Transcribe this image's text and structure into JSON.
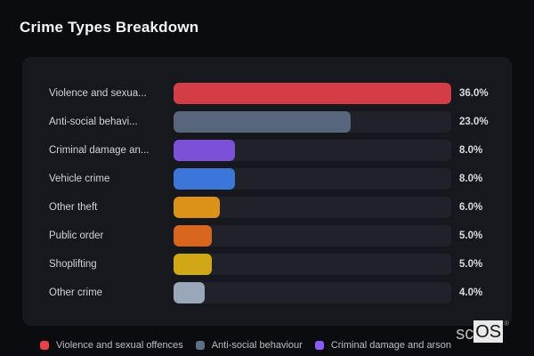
{
  "page": {
    "title": "Crime Types Breakdown"
  },
  "chart_data": {
    "type": "bar",
    "orientation": "horizontal",
    "title": "Crime Types Breakdown",
    "categories": [
      "Violence and sexual offences",
      "Anti-social behaviour",
      "Criminal damage and arson",
      "Vehicle crime",
      "Other theft",
      "Public order",
      "Shoplifting",
      "Other crime"
    ],
    "display_labels": [
      "Violence and sexua...",
      "Anti-social behavi...",
      "Criminal damage an...",
      "Vehicle crime",
      "Other theft",
      "Public order",
      "Shoplifting",
      "Other crime"
    ],
    "values": [
      36.0,
      23.0,
      8.0,
      8.0,
      6.0,
      5.0,
      5.0,
      4.0
    ],
    "value_labels": [
      "36.0%",
      "23.0%",
      "8.0%",
      "8.0%",
      "6.0%",
      "5.0%",
      "5.0%",
      "4.0%"
    ],
    "colors": [
      "#d43d47",
      "#57667a",
      "#7d50d8",
      "#3b76d8",
      "#dc9119",
      "#d9661e",
      "#d0a716",
      "#9aa7ba"
    ],
    "max_value": 36,
    "value_suffix": "%",
    "track_color": "#212229",
    "legend_position": "bottom",
    "legend": [
      {
        "label": "Violence and sexual offences",
        "color": "#e84048"
      },
      {
        "label": "Anti-social behaviour",
        "color": "#5f7186"
      },
      {
        "label": "Criminal damage and arson",
        "color": "#8b5cf6"
      }
    ]
  },
  "watermark": {
    "prefix": "sc",
    "box_text": "OS",
    "registered_mark": "®"
  }
}
